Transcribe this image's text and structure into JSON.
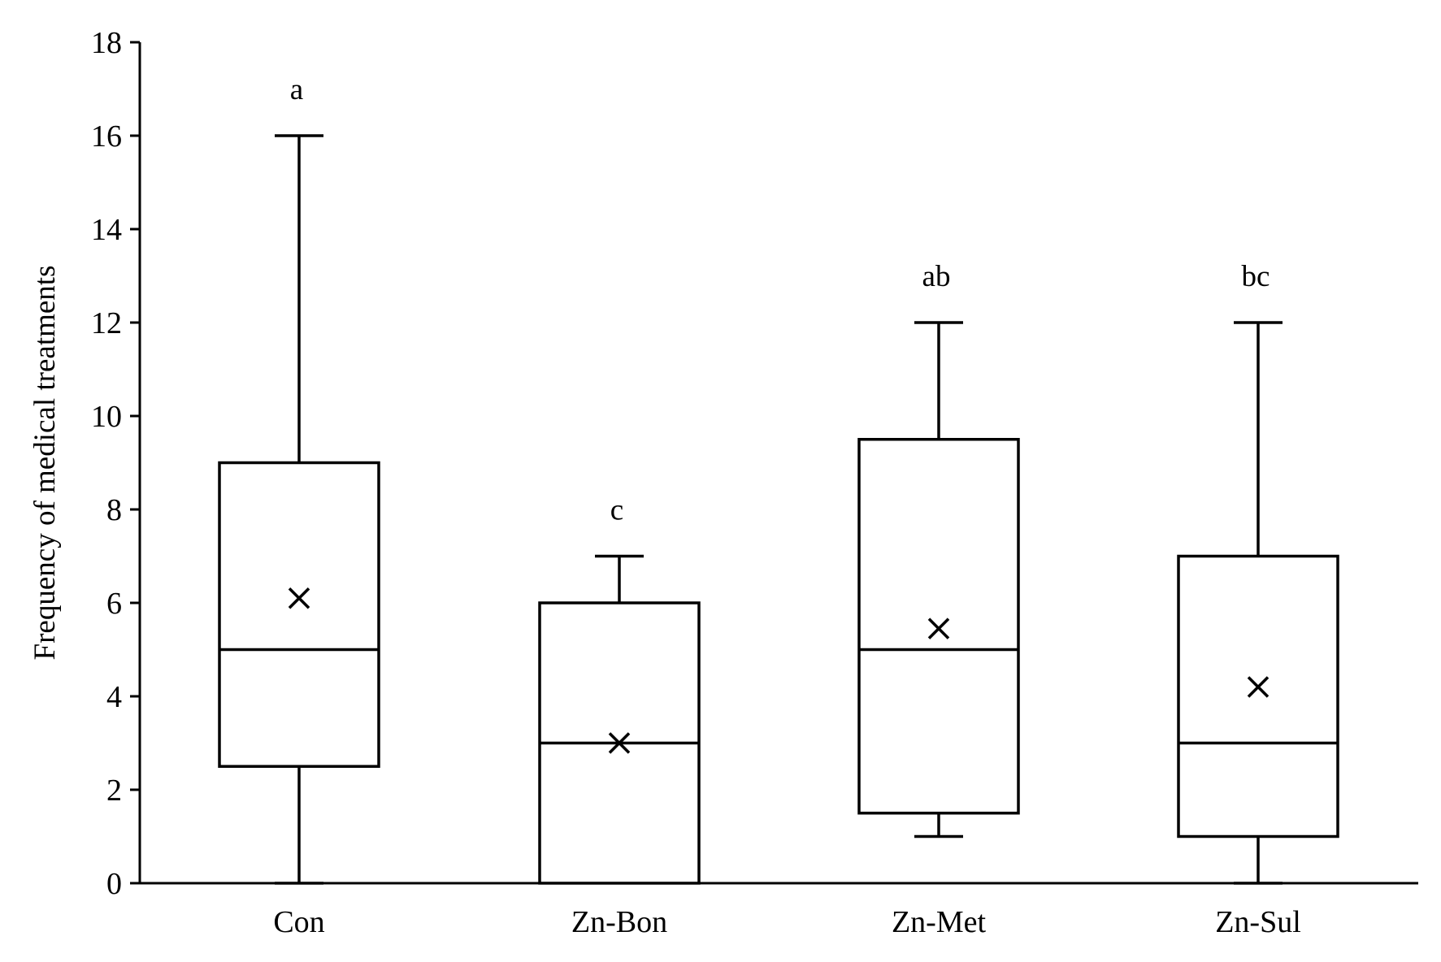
{
  "chart_data": {
    "type": "box",
    "title": "",
    "xlabel": "",
    "ylabel": "Frequency of medical treatments",
    "ylim": [
      0,
      18
    ],
    "yticks": [
      0,
      2,
      4,
      6,
      8,
      10,
      12,
      14,
      16,
      18
    ],
    "grid": false,
    "categories": [
      "Con",
      "Zn-Bon",
      "Zn-Met",
      "Zn-Sul"
    ],
    "boxes": [
      {
        "category": "Con",
        "min": 0,
        "q1": 2.5,
        "median": 5,
        "q3": 9,
        "max": 16,
        "mean": 6.1,
        "significance": "a"
      },
      {
        "category": "Zn-Bon",
        "min": 0,
        "q1": 0,
        "median": 3,
        "q3": 6,
        "max": 7,
        "mean": 3.0,
        "significance": "c"
      },
      {
        "category": "Zn-Met",
        "min": 1,
        "q1": 1.5,
        "median": 5,
        "q3": 9.5,
        "max": 12,
        "mean": 5.45,
        "significance": "ab"
      },
      {
        "category": "Zn-Sul",
        "min": 0,
        "q1": 1,
        "median": 3,
        "q3": 7,
        "max": 12,
        "mean": 4.2,
        "significance": "bc"
      }
    ],
    "colors": {
      "stroke": "#000000",
      "background": "#ffffff"
    }
  }
}
